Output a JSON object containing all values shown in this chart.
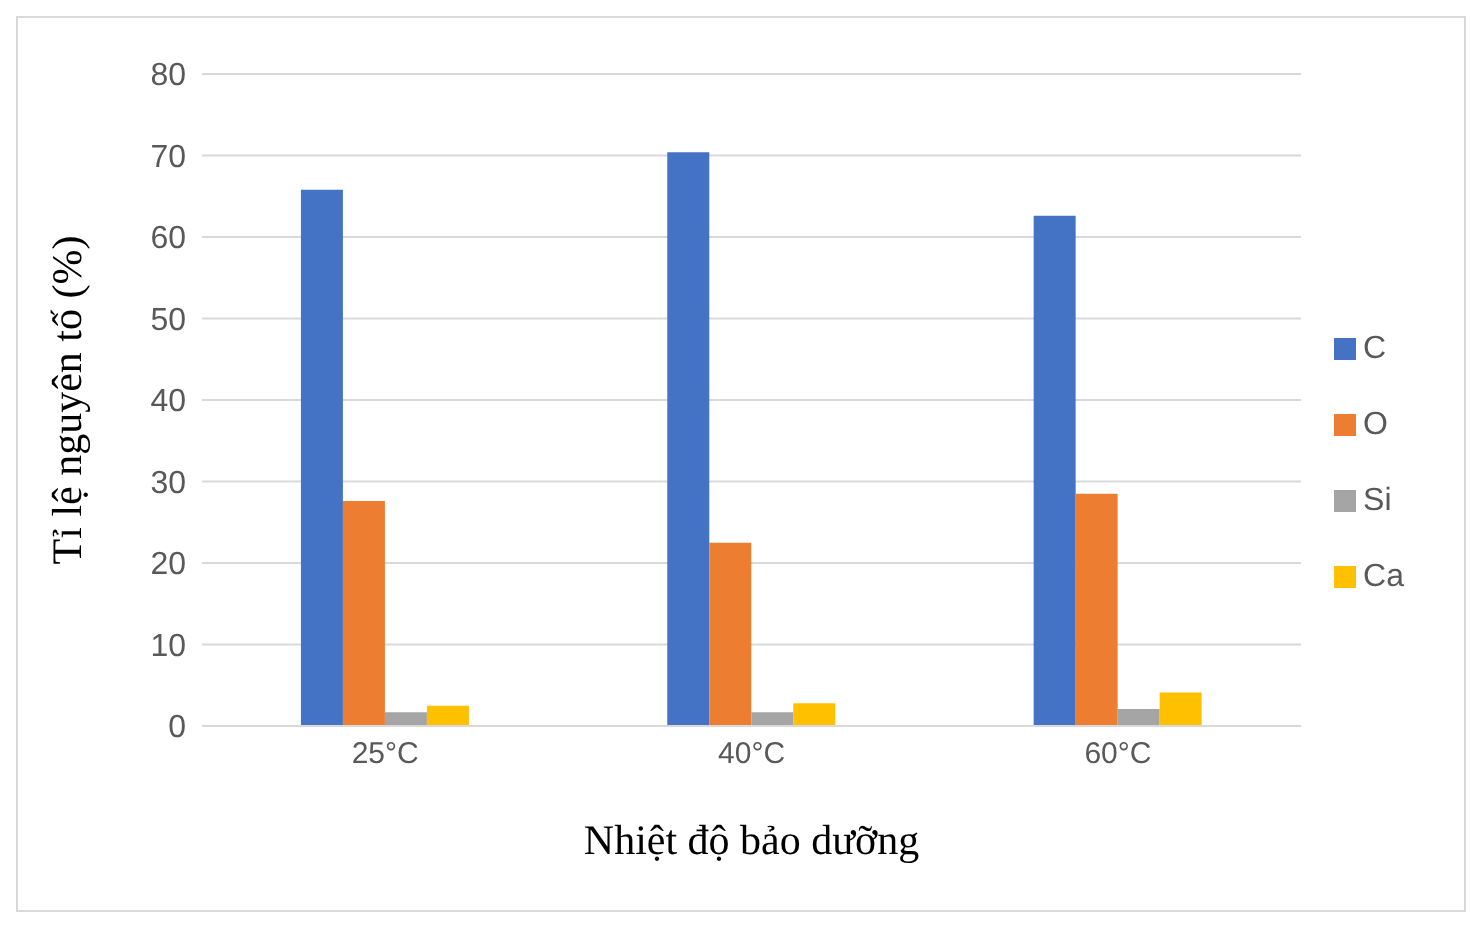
{
  "chart_data": {
    "type": "bar",
    "xlabel": "Nhiệt độ bảo dưỡng",
    "ylabel": "Tỉ lệ nguyên tố (%)",
    "categories": [
      "25°C",
      "40°C",
      "60°C"
    ],
    "series": [
      {
        "name": "C",
        "color": "#4472c4",
        "values": [
          65.8,
          70.4,
          62.6
        ]
      },
      {
        "name": "O",
        "color": "#ed7d31",
        "values": [
          27.6,
          22.5,
          28.5
        ]
      },
      {
        "name": "Si",
        "color": "#a5a5a5",
        "values": [
          1.7,
          1.7,
          2.1
        ]
      },
      {
        "name": "Ca",
        "color": "#ffc000",
        "values": [
          2.5,
          2.8,
          4.1
        ]
      }
    ],
    "ylim": [
      0,
      80
    ],
    "yticks": [
      0,
      10,
      20,
      30,
      40,
      50,
      60,
      70,
      80
    ],
    "grid": "y",
    "legend": "right"
  }
}
